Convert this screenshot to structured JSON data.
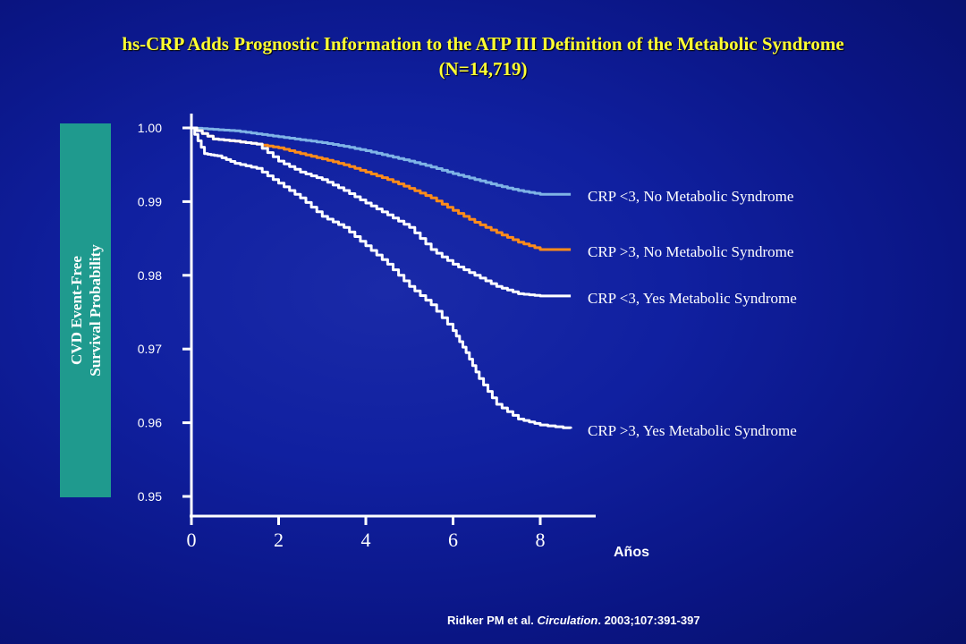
{
  "title_line1": "hs-CRP Adds Prognostic Information to the ATP III Definition of the Metabolic Syndrome",
  "title_line2": "(N=14,719)",
  "citation": {
    "author": "Ridker PM et al.",
    "journal": "Circulation",
    "details": ". 2003;107:391-397"
  },
  "colors": {
    "light_blue": "#7fb4e6",
    "orange": "#ff8c1a",
    "white": "#ffffff",
    "title": "#ffff33",
    "ylabel_box": "#1f9a8e"
  },
  "chart_data": {
    "type": "line",
    "ylabel_lines": [
      "CVD Event-Free",
      "Survival Probability"
    ],
    "xlabel": "Años",
    "ylim": [
      0.95,
      1.0
    ],
    "xlim": [
      0,
      8
    ],
    "yticks": [
      "1.00",
      "0.99",
      "0.98",
      "0.97",
      "0.96",
      "0.95"
    ],
    "xticks": [
      "0",
      "2",
      "4",
      "6",
      "8"
    ],
    "grid": false,
    "legend": "right-of-lines",
    "series": [
      {
        "name": "CRP <3, No Metabolic Syndrome",
        "color": "#7fb4e6",
        "x": [
          0,
          0.5,
          1,
          1.5,
          2,
          2.5,
          3,
          3.5,
          4,
          4.5,
          5,
          5.5,
          6,
          6.5,
          7,
          7.5,
          8,
          8.7
        ],
        "y": [
          1.0,
          0.9998,
          0.9996,
          0.9992,
          0.9988,
          0.9984,
          0.998,
          0.9975,
          0.9969,
          0.9962,
          0.9955,
          0.9947,
          0.9938,
          0.993,
          0.9922,
          0.9915,
          0.991,
          0.991
        ]
      },
      {
        "name": "CRP >3, No Metabolic Syndrome",
        "color": "#ff8c1a",
        "x": [
          0,
          0.5,
          1,
          1.5,
          2,
          2.5,
          3,
          3.5,
          4,
          4.5,
          5,
          5.5,
          6,
          6.5,
          7,
          7.5,
          8,
          8.7
        ],
        "y": [
          1.0,
          0.9985,
          0.9982,
          0.9978,
          0.9973,
          0.9965,
          0.9958,
          0.995,
          0.994,
          0.993,
          0.9918,
          0.9905,
          0.9888,
          0.9872,
          0.9858,
          0.9845,
          0.9835,
          0.9835
        ]
      },
      {
        "name": "CRP <3, Yes Metabolic Syndrome",
        "color": "#ffffff",
        "x": [
          0,
          0.5,
          1,
          1.5,
          2,
          2.5,
          3,
          3.5,
          4,
          4.5,
          5,
          5.5,
          6,
          6.5,
          7,
          7.5,
          8,
          8.7
        ],
        "y": [
          1.0,
          0.9985,
          0.9982,
          0.9978,
          0.9955,
          0.994,
          0.993,
          0.9915,
          0.9898,
          0.9882,
          0.9865,
          0.9835,
          0.9815,
          0.98,
          0.9785,
          0.9775,
          0.9772,
          0.9772
        ]
      },
      {
        "name": "CRP >3, Yes Metabolic Syndrome",
        "color": "#ffffff",
        "x": [
          0,
          0.3,
          0.6,
          1,
          1.5,
          2,
          2.5,
          3,
          3.5,
          4,
          4.5,
          5,
          5.5,
          6,
          6.3,
          6.6,
          7,
          7.5,
          8,
          8.7
        ],
        "y": [
          1.0,
          0.9965,
          0.9962,
          0.9952,
          0.9945,
          0.9925,
          0.9905,
          0.988,
          0.9865,
          0.984,
          0.9815,
          0.9785,
          0.976,
          0.9725,
          0.9695,
          0.966,
          0.9625,
          0.9605,
          0.9597,
          0.9592
        ]
      }
    ]
  }
}
